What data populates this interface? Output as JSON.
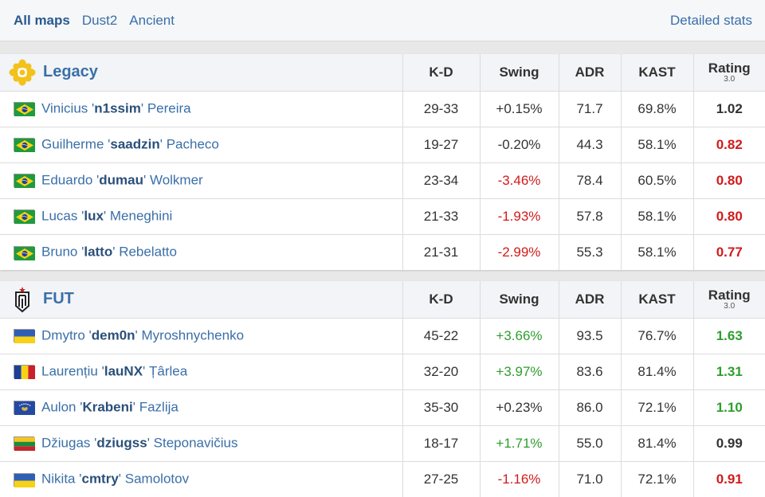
{
  "map_tabs": [
    {
      "label": "All maps",
      "active": true
    },
    {
      "label": "Dust2",
      "active": false
    },
    {
      "label": "Ancient",
      "active": false
    }
  ],
  "detailed_stats_label": "Detailed stats",
  "columns": {
    "kd": "K-D",
    "swing": "Swing",
    "adr": "ADR",
    "kast": "KAST",
    "rating": "Rating",
    "rating_sub": "3.0"
  },
  "teams": [
    {
      "name": "Legacy",
      "logo_icon": "legacy-logo-icon",
      "players": [
        {
          "flag": "br",
          "first": "Vinicius '",
          "nick": "n1ssim",
          "last": "' Pereira",
          "kd": "29-33",
          "swing": "+0.15%",
          "swing_tone": "neutral",
          "adr": "71.7",
          "kast": "69.8%",
          "rating": "1.02",
          "rating_tone": "neutral"
        },
        {
          "flag": "br",
          "first": "Guilherme '",
          "nick": "saadzin",
          "last": "' Pacheco",
          "kd": "19-27",
          "swing": "-0.20%",
          "swing_tone": "neutral",
          "adr": "44.3",
          "kast": "58.1%",
          "rating": "0.82",
          "rating_tone": "neg"
        },
        {
          "flag": "br",
          "first": "Eduardo '",
          "nick": "dumau",
          "last": "' Wolkmer",
          "kd": "23-34",
          "swing": "-3.46%",
          "swing_tone": "neg",
          "adr": "78.4",
          "kast": "60.5%",
          "rating": "0.80",
          "rating_tone": "neg"
        },
        {
          "flag": "br",
          "first": "Lucas '",
          "nick": "lux",
          "last": "' Meneghini",
          "kd": "21-33",
          "swing": "-1.93%",
          "swing_tone": "neg",
          "adr": "57.8",
          "kast": "58.1%",
          "rating": "0.80",
          "rating_tone": "neg"
        },
        {
          "flag": "br",
          "first": "Bruno '",
          "nick": "latto",
          "last": "' Rebelatto",
          "kd": "21-31",
          "swing": "-2.99%",
          "swing_tone": "neg",
          "adr": "55.3",
          "kast": "58.1%",
          "rating": "0.77",
          "rating_tone": "neg"
        }
      ]
    },
    {
      "name": "FUT",
      "logo_icon": "fut-logo-icon",
      "players": [
        {
          "flag": "ua",
          "first": "Dmytro '",
          "nick": "dem0n",
          "last": "' Myroshnychenko",
          "kd": "45-22",
          "swing": "+3.66%",
          "swing_tone": "pos",
          "adr": "93.5",
          "kast": "76.7%",
          "rating": "1.63",
          "rating_tone": "pos"
        },
        {
          "flag": "ro",
          "first": "Laurențiu '",
          "nick": "lauNX",
          "last": "' Țârlea",
          "kd": "32-20",
          "swing": "+3.97%",
          "swing_tone": "pos",
          "adr": "83.6",
          "kast": "81.4%",
          "rating": "1.31",
          "rating_tone": "pos"
        },
        {
          "flag": "xk",
          "first": "Aulon '",
          "nick": "Krabeni",
          "last": "' Fazlija",
          "kd": "35-30",
          "swing": "+0.23%",
          "swing_tone": "neutral",
          "adr": "86.0",
          "kast": "72.1%",
          "rating": "1.10",
          "rating_tone": "pos"
        },
        {
          "flag": "lt",
          "first": "Džiugas '",
          "nick": "dziugss",
          "last": "' Steponavičius",
          "kd": "18-17",
          "swing": "+1.71%",
          "swing_tone": "pos",
          "adr": "55.0",
          "kast": "81.4%",
          "rating": "0.99",
          "rating_tone": "neutral"
        },
        {
          "flag": "ua",
          "first": "Nikita '",
          "nick": "cmtry",
          "last": "' Samolotov",
          "kd": "27-25",
          "swing": "-1.16%",
          "swing_tone": "neg",
          "adr": "71.0",
          "kast": "72.1%",
          "rating": "0.91",
          "rating_tone": "neg"
        }
      ]
    }
  ]
}
